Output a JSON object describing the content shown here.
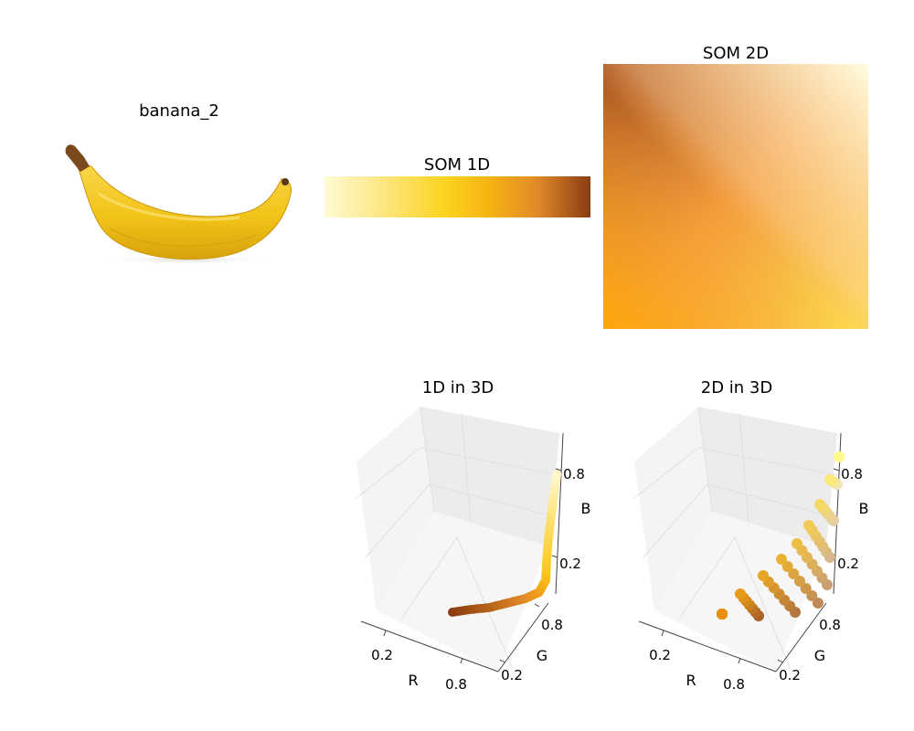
{
  "titles": {
    "image": "banana_2",
    "som1d": "SOM 1D",
    "som2d": "SOM 2D",
    "plot1d3d": "1D in 3D",
    "plot2d3d": "2D in 3D"
  },
  "axis_labels": {
    "r": "R",
    "g": "G",
    "b": "B"
  },
  "tick_labels": {
    "low": "0.2",
    "high": "0.8"
  },
  "colors": {
    "banana_yellow": "#f2c418",
    "stem_brown": "#7a4a1c",
    "pane_gray": "#f2f2f2",
    "grid": "#e3e3e3"
  },
  "chart_data": [
    {
      "type": "heatmap",
      "title": "SOM 1D",
      "colormap_stops": [
        "#fffbd4",
        "#fcd64b",
        "#fcd41f",
        "#f4ac10",
        "#e08a2a",
        "#8a3b12"
      ]
    },
    {
      "type": "heatmap",
      "title": "SOM 2D",
      "corners": {
        "top_left": "#8a3812",
        "top_right": "#fffde0",
        "bottom_left": "#ffa60a",
        "bottom_right": "#fff452"
      }
    },
    {
      "type": "scatter",
      "title": "1D in 3D",
      "xlabel": "R",
      "ylabel": "G",
      "zlabel": "B",
      "ticks": [
        "0.2",
        "0.8"
      ],
      "points": [
        {
          "rgb": [
            0.54,
            0.23,
            0.07
          ]
        },
        {
          "rgb": [
            0.62,
            0.3,
            0.08
          ]
        },
        {
          "rgb": [
            0.7,
            0.38,
            0.1
          ]
        },
        {
          "rgb": [
            0.8,
            0.46,
            0.12
          ]
        },
        {
          "rgb": [
            0.88,
            0.54,
            0.16
          ]
        },
        {
          "rgb": [
            0.94,
            0.62,
            0.1
          ]
        },
        {
          "rgb": [
            0.97,
            0.72,
            0.08
          ]
        },
        {
          "rgb": [
            0.99,
            0.8,
            0.15
          ]
        },
        {
          "rgb": [
            0.99,
            0.84,
            0.3
          ]
        },
        {
          "rgb": [
            1.0,
            0.88,
            0.45
          ]
        },
        {
          "rgb": [
            1.0,
            0.93,
            0.65
          ]
        },
        {
          "rgb": [
            1.0,
            0.98,
            0.83
          ]
        }
      ]
    },
    {
      "type": "scatter",
      "title": "2D in 3D",
      "xlabel": "R",
      "ylabel": "G",
      "zlabel": "B",
      "ticks": [
        "0.2",
        "0.8"
      ],
      "points": "surface sampled from SOM 2D"
    }
  ]
}
